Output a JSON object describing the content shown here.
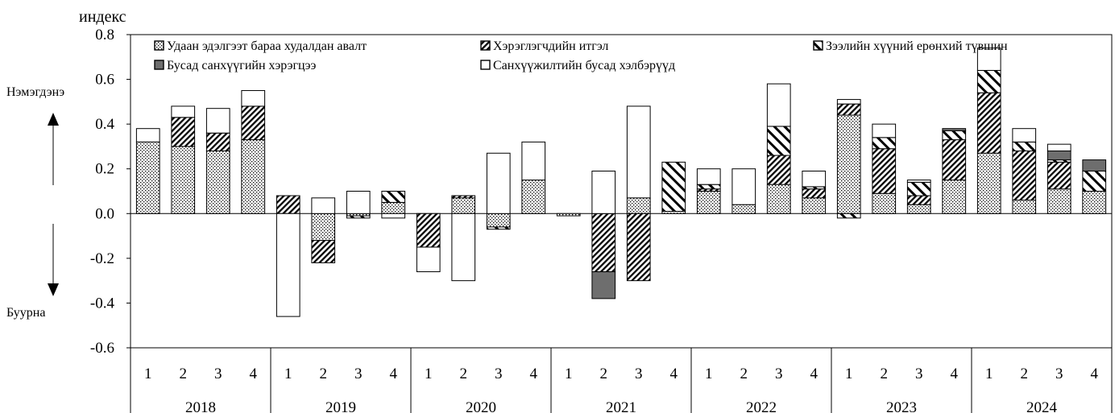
{
  "unit_label": "индекс",
  "side_labels": {
    "up": "Нэмэгдэнэ",
    "down": "Буурна"
  },
  "colors": {
    "dark_fill": "#6e6e6e",
    "stroke": "#000000",
    "background": "#ffffff"
  },
  "chart_data": {
    "type": "bar",
    "stacked": true,
    "title": "",
    "ylim": [
      -0.6,
      0.8
    ],
    "yticks": [
      -0.6,
      -0.4,
      -0.2,
      0.0,
      0.2,
      0.4,
      0.6,
      0.8
    ],
    "ytick_labels": [
      "-0.6",
      "-0.4",
      "-0.2",
      "0.0",
      "0.2",
      "0.4",
      "0.6",
      "0.8"
    ],
    "grid": false,
    "legend_position": "top",
    "quarters": [
      "1",
      "2",
      "3",
      "4"
    ],
    "years": [
      "2018",
      "2019",
      "2020",
      "2021",
      "2022",
      "2023",
      "2024"
    ],
    "categories": [
      "2018-1",
      "2018-2",
      "2018-3",
      "2018-4",
      "2019-1",
      "2019-2",
      "2019-3",
      "2019-4",
      "2020-1",
      "2020-2",
      "2020-3",
      "2020-4",
      "2021-1",
      "2021-2",
      "2021-3",
      "2021-4",
      "2022-1",
      "2022-2",
      "2022-3",
      "2022-4",
      "2023-1",
      "2023-2",
      "2023-3",
      "2023-4",
      "2024-1",
      "2024-2",
      "2024-3",
      "2024-4"
    ],
    "series": [
      {
        "name": "Удаан эдэлгээт бараа худалдан авалт",
        "pattern": "crosshatch",
        "values": [
          0.32,
          0.3,
          0.28,
          0.33,
          0.0,
          -0.12,
          -0.01,
          0.05,
          0.0,
          0.07,
          -0.06,
          0.15,
          -0.01,
          0.0,
          0.07,
          0.01,
          0.1,
          0.04,
          0.13,
          0.07,
          0.44,
          0.09,
          0.04,
          0.15,
          0.27,
          0.06,
          0.11,
          0.1
        ]
      },
      {
        "name": "Хэрэглэгчдийн итгэл",
        "pattern": "diag-dense",
        "values": [
          0.0,
          0.13,
          0.08,
          0.15,
          0.08,
          -0.1,
          0.0,
          0.0,
          -0.15,
          0.01,
          0.0,
          0.0,
          0.0,
          -0.26,
          -0.3,
          0.0,
          0.01,
          0.0,
          0.13,
          0.04,
          0.05,
          0.2,
          0.04,
          0.18,
          0.27,
          0.22,
          0.12,
          0.0
        ]
      },
      {
        "name": "Зээлийн хүүний ерөнхий түвшин",
        "pattern": "diag-sparse",
        "values": [
          0.0,
          0.0,
          0.0,
          0.0,
          0.0,
          0.0,
          -0.01,
          0.05,
          0.0,
          0.0,
          -0.01,
          0.0,
          0.0,
          0.0,
          0.0,
          0.22,
          0.02,
          0.0,
          0.13,
          0.01,
          -0.02,
          0.05,
          0.06,
          0.04,
          0.1,
          0.04,
          0.01,
          0.09
        ]
      },
      {
        "name": "Бусад санхүүгийн хэрэгцээ",
        "pattern": "solid-dark",
        "values": [
          0.0,
          0.0,
          0.0,
          0.0,
          0.0,
          0.0,
          0.0,
          0.0,
          0.0,
          0.0,
          0.0,
          0.0,
          0.0,
          -0.12,
          0.0,
          0.0,
          0.0,
          0.0,
          0.0,
          0.0,
          0.0,
          0.0,
          0.0,
          0.01,
          0.0,
          0.0,
          0.04,
          0.05
        ]
      },
      {
        "name": "Санхүүжилтийн бусад хэлбэрүүд",
        "pattern": "empty",
        "values": [
          0.06,
          0.05,
          0.11,
          0.07,
          -0.46,
          0.07,
          0.1,
          -0.02,
          -0.11,
          -0.3,
          0.27,
          0.17,
          0.0,
          0.19,
          0.41,
          0.0,
          0.07,
          0.16,
          0.19,
          0.07,
          0.02,
          0.06,
          0.01,
          0.0,
          0.1,
          0.06,
          0.03,
          0.0
        ]
      }
    ]
  }
}
